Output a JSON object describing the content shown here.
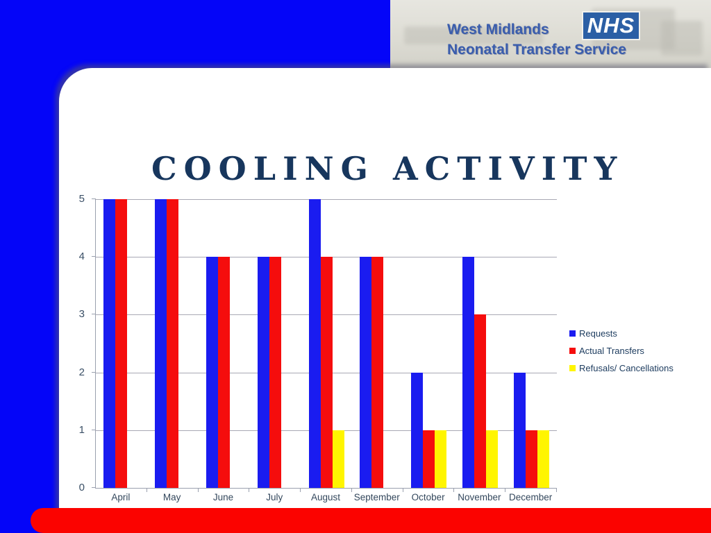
{
  "header": {
    "org_line1": "West Midlands",
    "org_line2": "Neonatal Transfer Service",
    "nhs_logo_text": "NHS"
  },
  "slide": {
    "title": "COOLING ACTIVITY"
  },
  "colors": {
    "slide_background_blue": "#0405f8",
    "bottom_band_red": "#fb0300",
    "title_navy": "#17365d",
    "axis_text": "#33475c",
    "gridline_gray": "#a8a8b4",
    "nhs_blue": "#2b5fa5",
    "requests_blue": "#1a1cf0",
    "actual_transfers_red": "#f50d0d",
    "refusals_yellow": "#fff500"
  },
  "chart_data": {
    "type": "bar",
    "title": "",
    "xlabel": "",
    "ylabel": "",
    "categories": [
      "April",
      "May",
      "June",
      "July",
      "August",
      "September",
      "October",
      "November",
      "December"
    ],
    "series": [
      {
        "name": "Requests",
        "color": "#1a1cf0",
        "values": [
          5,
          5,
          4,
          4,
          5,
          4,
          2,
          4,
          2
        ]
      },
      {
        "name": "Actual Transfers",
        "color": "#f50d0d",
        "values": [
          5,
          5,
          4,
          4,
          4,
          4,
          1,
          3,
          1
        ]
      },
      {
        "name": "Refusals/ Cancellations",
        "color": "#fff500",
        "values": [
          0,
          0,
          0,
          0,
          1,
          0,
          1,
          1,
          1
        ]
      }
    ],
    "ylim": [
      0,
      5
    ],
    "yticks": [
      0,
      1,
      2,
      3,
      4,
      5
    ],
    "grid": true,
    "legend_position": "right"
  }
}
